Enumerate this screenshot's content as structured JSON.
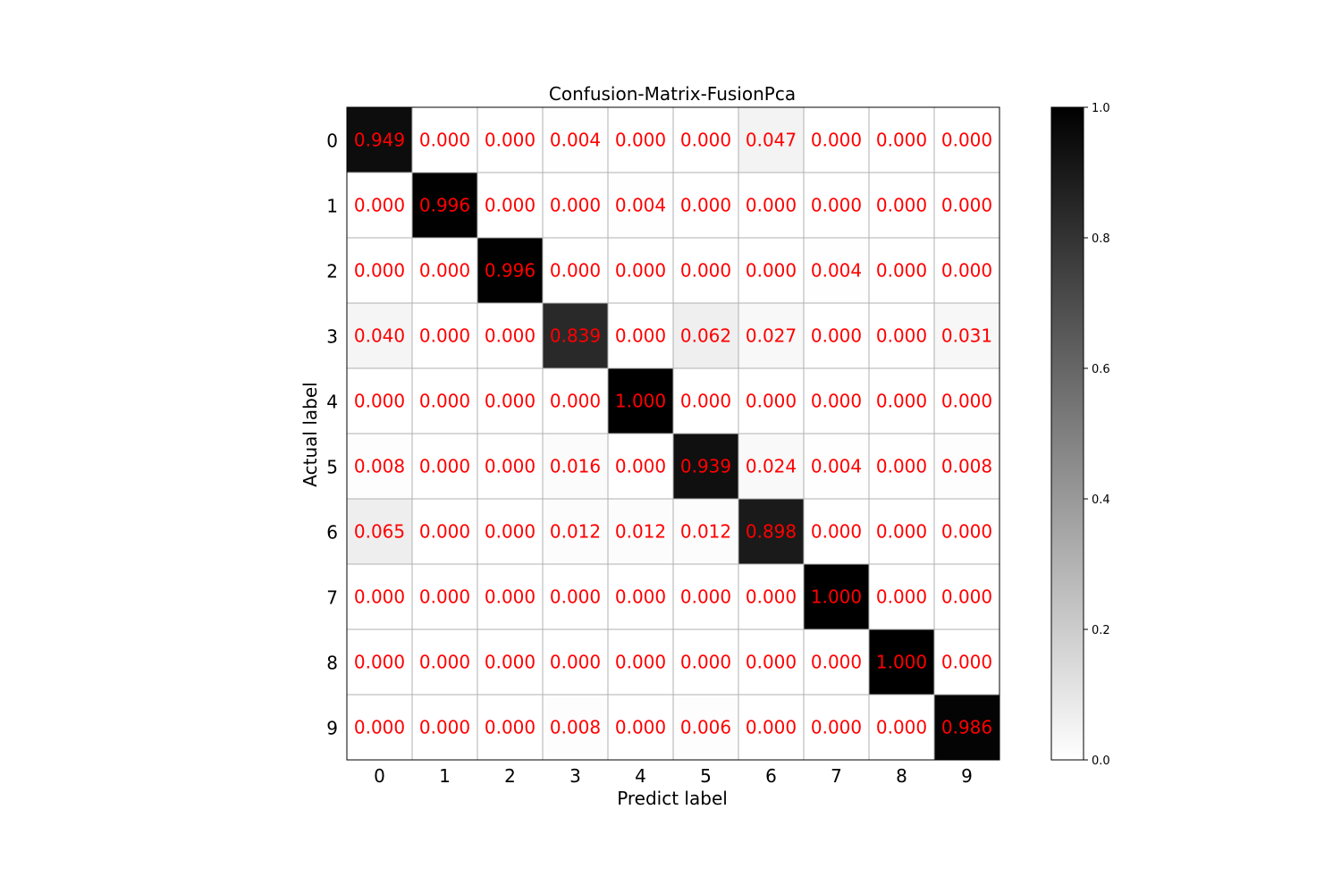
{
  "chart_data": {
    "type": "heatmap",
    "title": "Confusion-Matrix-FusionPca",
    "xlabel": "Predict label",
    "ylabel": "Actual label",
    "x_categories": [
      "0",
      "1",
      "2",
      "3",
      "4",
      "5",
      "6",
      "7",
      "8",
      "9"
    ],
    "y_categories": [
      "0",
      "1",
      "2",
      "3",
      "4",
      "5",
      "6",
      "7",
      "8",
      "9"
    ],
    "values": [
      [
        0.949,
        0.0,
        0.0,
        0.004,
        0.0,
        0.0,
        0.047,
        0.0,
        0.0,
        0.0
      ],
      [
        0.0,
        0.996,
        0.0,
        0.0,
        0.004,
        0.0,
        0.0,
        0.0,
        0.0,
        0.0
      ],
      [
        0.0,
        0.0,
        0.996,
        0.0,
        0.0,
        0.0,
        0.0,
        0.004,
        0.0,
        0.0
      ],
      [
        0.04,
        0.0,
        0.0,
        0.839,
        0.0,
        0.062,
        0.027,
        0.0,
        0.0,
        0.031
      ],
      [
        0.0,
        0.0,
        0.0,
        0.0,
        1.0,
        0.0,
        0.0,
        0.0,
        0.0,
        0.0
      ],
      [
        0.008,
        0.0,
        0.0,
        0.016,
        0.0,
        0.939,
        0.024,
        0.004,
        0.0,
        0.008
      ],
      [
        0.065,
        0.0,
        0.0,
        0.012,
        0.012,
        0.012,
        0.898,
        0.0,
        0.0,
        0.0
      ],
      [
        0.0,
        0.0,
        0.0,
        0.0,
        0.0,
        0.0,
        0.0,
        1.0,
        0.0,
        0.0
      ],
      [
        0.0,
        0.0,
        0.0,
        0.0,
        0.0,
        0.0,
        0.0,
        0.0,
        1.0,
        0.0
      ],
      [
        0.0,
        0.0,
        0.0,
        0.008,
        0.0,
        0.006,
        0.0,
        0.0,
        0.0,
        0.986
      ]
    ],
    "value_format": "0.000",
    "colormap": "gray_r",
    "cell_text_color": "#ff0000",
    "grid": true,
    "colorbar": {
      "range": [
        0.0,
        1.0
      ],
      "ticks": [
        "0.0",
        "0.2",
        "0.4",
        "0.6",
        "0.8",
        "1.0"
      ]
    }
  }
}
